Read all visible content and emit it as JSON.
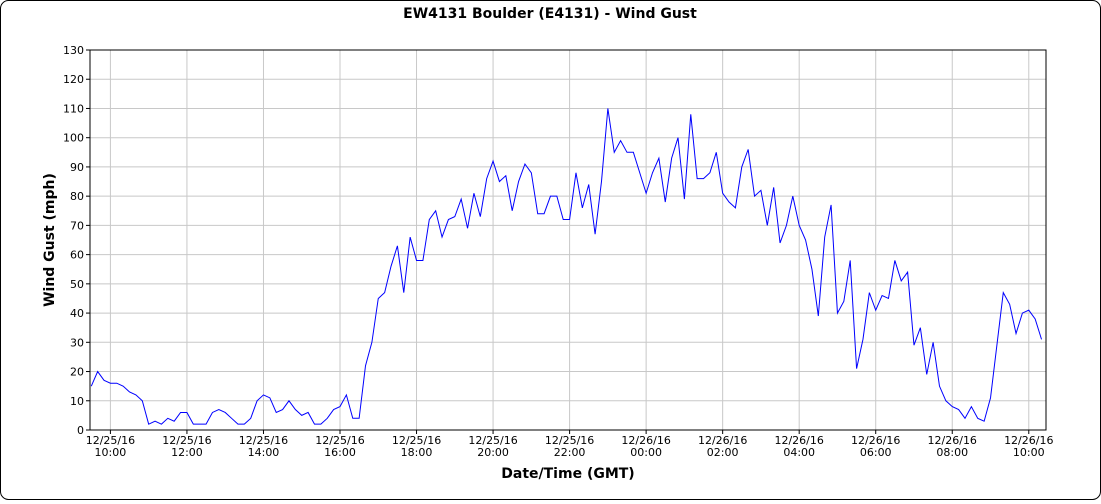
{
  "chart_data": {
    "type": "line",
    "title": "EW4131 Boulder (E4131) - Wind Gust",
    "xlabel": "Date/Time (GMT)",
    "ylabel": "Wind Gust (mph)",
    "color": "#0000ff",
    "grid": true,
    "x": [
      "2016-12-25T09:30",
      "2016-12-25T09:40",
      "2016-12-25T09:50",
      "2016-12-25T10:00",
      "2016-12-25T10:10",
      "2016-12-25T10:20",
      "2016-12-25T10:30",
      "2016-12-25T10:40",
      "2016-12-25T10:50",
      "2016-12-25T11:00",
      "2016-12-25T11:10",
      "2016-12-25T11:20",
      "2016-12-25T11:30",
      "2016-12-25T11:40",
      "2016-12-25T11:50",
      "2016-12-25T12:00",
      "2016-12-25T12:10",
      "2016-12-25T12:20",
      "2016-12-25T12:30",
      "2016-12-25T12:40",
      "2016-12-25T12:50",
      "2016-12-25T13:00",
      "2016-12-25T13:10",
      "2016-12-25T13:20",
      "2016-12-25T13:30",
      "2016-12-25T13:40",
      "2016-12-25T13:50",
      "2016-12-25T14:00",
      "2016-12-25T14:10",
      "2016-12-25T14:20",
      "2016-12-25T14:30",
      "2016-12-25T14:40",
      "2016-12-25T14:50",
      "2016-12-25T15:00",
      "2016-12-25T15:10",
      "2016-12-25T15:20",
      "2016-12-25T15:30",
      "2016-12-25T15:40",
      "2016-12-25T15:50",
      "2016-12-25T16:00",
      "2016-12-25T16:10",
      "2016-12-25T16:20",
      "2016-12-25T16:30",
      "2016-12-25T16:40",
      "2016-12-25T16:50",
      "2016-12-25T17:00",
      "2016-12-25T17:10",
      "2016-12-25T17:20",
      "2016-12-25T17:30",
      "2016-12-25T17:40",
      "2016-12-25T17:50",
      "2016-12-25T18:00",
      "2016-12-25T18:10",
      "2016-12-25T18:20",
      "2016-12-25T18:30",
      "2016-12-25T18:40",
      "2016-12-25T18:50",
      "2016-12-25T19:00",
      "2016-12-25T19:10",
      "2016-12-25T19:20",
      "2016-12-25T19:30",
      "2016-12-25T19:40",
      "2016-12-25T19:50",
      "2016-12-25T20:00",
      "2016-12-25T20:10",
      "2016-12-25T20:20",
      "2016-12-25T20:30",
      "2016-12-25T20:40",
      "2016-12-25T20:50",
      "2016-12-25T21:00",
      "2016-12-25T21:10",
      "2016-12-25T21:20",
      "2016-12-25T21:30",
      "2016-12-25T21:40",
      "2016-12-25T21:50",
      "2016-12-25T22:00",
      "2016-12-25T22:10",
      "2016-12-25T22:20",
      "2016-12-25T22:30",
      "2016-12-25T22:40",
      "2016-12-25T22:50",
      "2016-12-25T23:00",
      "2016-12-25T23:10",
      "2016-12-25T23:20",
      "2016-12-25T23:30",
      "2016-12-25T23:40",
      "2016-12-25T23:50",
      "2016-12-26T00:00",
      "2016-12-26T00:10",
      "2016-12-26T00:20",
      "2016-12-26T00:30",
      "2016-12-26T00:40",
      "2016-12-26T00:50",
      "2016-12-26T01:00",
      "2016-12-26T01:10",
      "2016-12-26T01:20",
      "2016-12-26T01:30",
      "2016-12-26T01:40",
      "2016-12-26T01:50",
      "2016-12-26T02:00",
      "2016-12-26T02:10",
      "2016-12-26T02:20",
      "2016-12-26T02:30",
      "2016-12-26T02:40",
      "2016-12-26T02:50",
      "2016-12-26T03:00",
      "2016-12-26T03:10",
      "2016-12-26T03:20",
      "2016-12-26T03:30",
      "2016-12-26T03:40",
      "2016-12-26T03:50",
      "2016-12-26T04:00",
      "2016-12-26T04:10",
      "2016-12-26T04:20",
      "2016-12-26T04:30",
      "2016-12-26T04:40",
      "2016-12-26T04:50",
      "2016-12-26T05:00",
      "2016-12-26T05:10",
      "2016-12-26T05:20",
      "2016-12-26T05:30",
      "2016-12-26T05:40",
      "2016-12-26T05:50",
      "2016-12-26T06:00",
      "2016-12-26T06:10",
      "2016-12-26T06:20",
      "2016-12-26T06:30",
      "2016-12-26T06:40",
      "2016-12-26T06:50",
      "2016-12-26T07:00",
      "2016-12-26T07:10",
      "2016-12-26T07:20",
      "2016-12-26T07:30",
      "2016-12-26T07:40",
      "2016-12-26T07:50",
      "2016-12-26T08:00",
      "2016-12-26T08:10",
      "2016-12-26T08:20",
      "2016-12-26T08:30",
      "2016-12-26T08:40",
      "2016-12-26T08:50",
      "2016-12-26T09:00",
      "2016-12-26T09:10",
      "2016-12-26T09:20",
      "2016-12-26T09:30",
      "2016-12-26T09:40",
      "2016-12-26T09:50",
      "2016-12-26T10:00",
      "2016-12-26T10:10",
      "2016-12-26T10:20"
    ],
    "values": [
      15,
      20,
      17,
      16,
      16,
      15,
      13,
      12,
      10,
      2,
      3,
      2,
      4,
      3,
      6,
      6,
      2,
      2,
      2,
      6,
      7,
      6,
      4,
      2,
      2,
      4,
      10,
      12,
      11,
      6,
      7,
      10,
      7,
      5,
      6,
      2,
      2,
      4,
      7,
      8,
      12,
      4,
      4,
      22,
      30,
      45,
      47,
      56,
      63,
      47,
      66,
      58,
      58,
      72,
      75,
      66,
      72,
      73,
      79,
      69,
      81,
      73,
      86,
      92,
      85,
      87,
      75,
      85,
      91,
      88,
      74,
      74,
      80,
      80,
      72,
      72,
      88,
      76,
      84,
      67,
      85,
      110,
      95,
      99,
      95,
      95,
      88,
      81,
      88,
      93,
      78,
      93,
      100,
      79,
      108,
      86,
      86,
      88,
      95,
      81,
      78,
      76,
      90,
      96,
      80,
      82,
      70,
      83,
      64,
      70,
      80,
      70,
      65,
      55,
      39,
      66,
      77,
      40,
      44,
      58,
      21,
      31,
      47,
      41,
      46,
      45,
      58,
      51,
      54,
      29,
      35,
      19,
      30,
      15,
      10,
      8,
      7,
      4,
      8,
      4,
      3,
      11,
      29,
      47,
      43,
      33,
      40,
      41,
      38,
      31
    ],
    "xlim": [
      "2016-12-25T09:28",
      "2016-12-26T10:27"
    ],
    "xticks": [
      {
        "value": "2016-12-25T10:00",
        "label": [
          "12/25/16",
          "10:00"
        ]
      },
      {
        "value": "2016-12-25T12:00",
        "label": [
          "12/25/16",
          "12:00"
        ]
      },
      {
        "value": "2016-12-25T14:00",
        "label": [
          "12/25/16",
          "14:00"
        ]
      },
      {
        "value": "2016-12-25T16:00",
        "label": [
          "12/25/16",
          "16:00"
        ]
      },
      {
        "value": "2016-12-25T18:00",
        "label": [
          "12/25/16",
          "18:00"
        ]
      },
      {
        "value": "2016-12-25T20:00",
        "label": [
          "12/25/16",
          "20:00"
        ]
      },
      {
        "value": "2016-12-25T22:00",
        "label": [
          "12/25/16",
          "22:00"
        ]
      },
      {
        "value": "2016-12-26T00:00",
        "label": [
          "12/26/16",
          "00:00"
        ]
      },
      {
        "value": "2016-12-26T02:00",
        "label": [
          "12/26/16",
          "02:00"
        ]
      },
      {
        "value": "2016-12-26T04:00",
        "label": [
          "12/26/16",
          "04:00"
        ]
      },
      {
        "value": "2016-12-26T06:00",
        "label": [
          "12/26/16",
          "06:00"
        ]
      },
      {
        "value": "2016-12-26T08:00",
        "label": [
          "12/26/16",
          "08:00"
        ]
      },
      {
        "value": "2016-12-26T10:00",
        "label": [
          "12/26/16",
          "10:00"
        ]
      }
    ],
    "ylim": [
      0,
      130
    ],
    "yticks": [
      0,
      10,
      20,
      30,
      40,
      50,
      60,
      70,
      80,
      90,
      100,
      110,
      120,
      130
    ]
  }
}
